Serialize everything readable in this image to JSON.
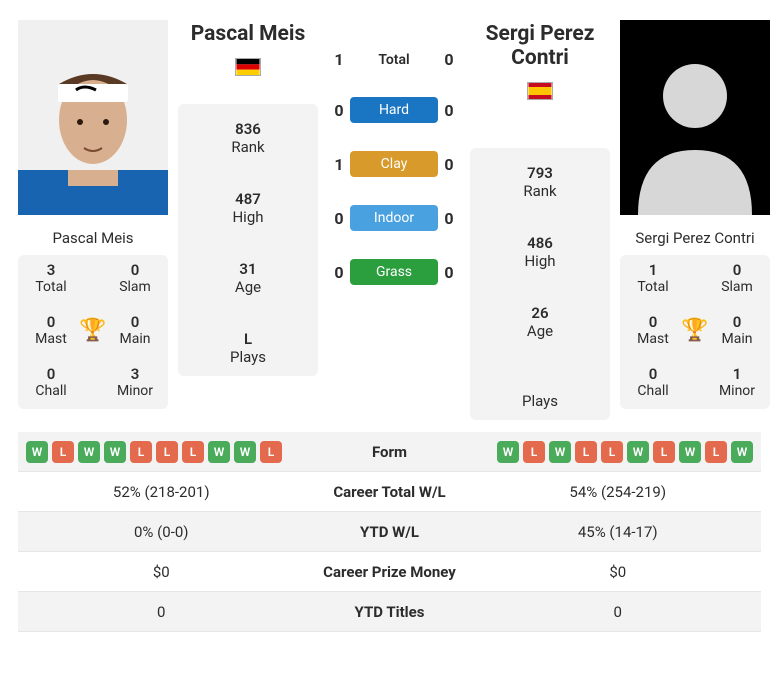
{
  "colors": {
    "win": "#4aab5b",
    "loss": "#e36a4c",
    "hard": "#1a76c3",
    "clay": "#d89a2a",
    "indoor": "#4aa1e0",
    "grass": "#2b9e3e",
    "trophy": "#4a8fd6",
    "card_bg": "#f3f3f3"
  },
  "p1": {
    "name": "Pascal Meis",
    "flag_colors": [
      "#000000",
      "#dd0000",
      "#ffce00"
    ],
    "rank": "836",
    "high": "487",
    "age": "31",
    "plays": "L",
    "titles": {
      "total": "3",
      "slam": "0",
      "mast": "0",
      "main": "0",
      "chall": "0",
      "minor": "3"
    },
    "form": [
      "W",
      "L",
      "W",
      "W",
      "L",
      "L",
      "L",
      "W",
      "W",
      "L"
    ],
    "career_wl": "52% (218-201)",
    "ytd_wl": "0% (0-0)",
    "career_prize": "$0",
    "ytd_titles": "0"
  },
  "p2": {
    "name": "Sergi Perez Contri",
    "flag_colors": [
      "#c60b1e",
      "#ffc400",
      "#c60b1e"
    ],
    "rank": "793",
    "high": "486",
    "age": "26",
    "plays": " ",
    "titles": {
      "total": "1",
      "slam": "0",
      "mast": "0",
      "main": "0",
      "chall": "0",
      "minor": "1"
    },
    "form": [
      "W",
      "L",
      "W",
      "L",
      "L",
      "W",
      "L",
      "W",
      "L",
      "W"
    ],
    "career_wl": "54% (254-219)",
    "ytd_wl": "45% (14-17)",
    "career_prize": "$0",
    "ytd_titles": "0"
  },
  "h2h": {
    "total": {
      "p1": "1",
      "label": "Total",
      "p2": "0"
    },
    "hard": {
      "p1": "0",
      "label": "Hard",
      "p2": "0"
    },
    "clay": {
      "p1": "1",
      "label": "Clay",
      "p2": "0"
    },
    "indoor": {
      "p1": "0",
      "label": "Indoor",
      "p2": "0"
    },
    "grass": {
      "p1": "0",
      "label": "Grass",
      "p2": "0"
    }
  },
  "labels": {
    "rank": "Rank",
    "high": "High",
    "age": "Age",
    "plays": "Plays",
    "total": "Total",
    "slam": "Slam",
    "mast": "Mast",
    "main": "Main",
    "chall": "Chall",
    "minor": "Minor",
    "form": "Form",
    "career_wl": "Career Total W/L",
    "ytd_wl": "YTD W/L",
    "career_prize": "Career Prize Money",
    "ytd_titles": "YTD Titles"
  }
}
